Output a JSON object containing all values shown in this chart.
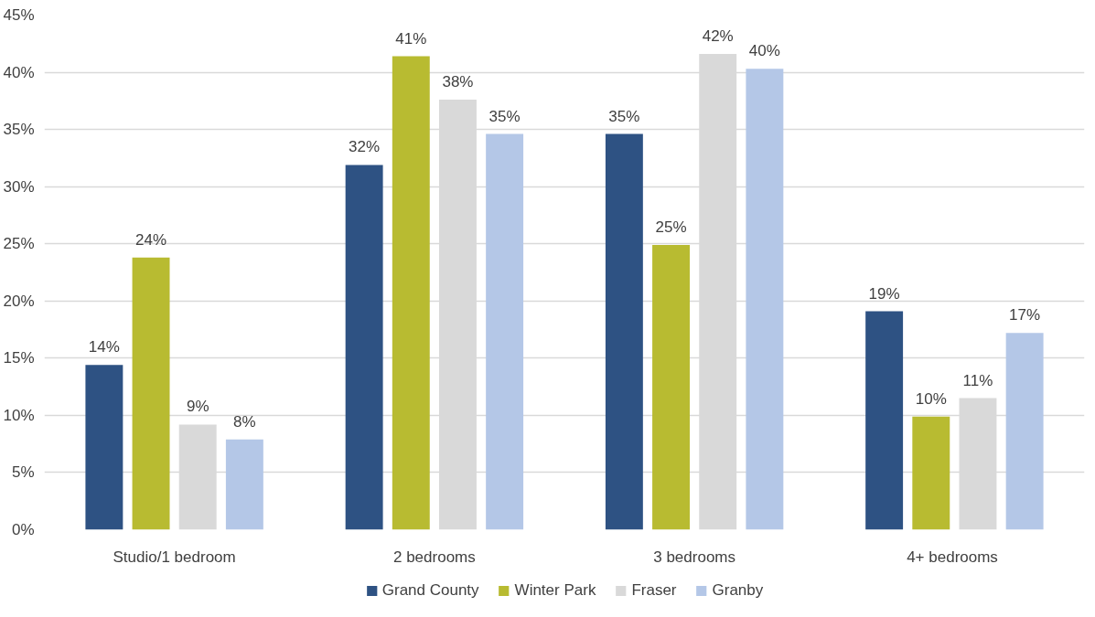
{
  "chart_data": {
    "type": "bar",
    "categories": [
      "Studio/1 bedroom",
      "2 bedrooms",
      "3 bedrooms",
      "4+  bedrooms"
    ],
    "series": [
      {
        "name": "Grand County",
        "color": "#2e5283",
        "values": [
          14.4,
          31.9,
          34.6,
          19.1
        ],
        "value_labels": [
          "14%",
          "32%",
          "35%",
          "19%"
        ]
      },
      {
        "name": "Winter Park",
        "color": "#b8bb31",
        "values": [
          23.8,
          41.4,
          24.9,
          9.9
        ],
        "value_labels": [
          "24%",
          "41%",
          "25%",
          "10%"
        ]
      },
      {
        "name": "Fraser",
        "color": "#d9d9d9",
        "values": [
          9.2,
          37.6,
          41.6,
          11.5
        ],
        "value_labels": [
          "9%",
          "38%",
          "42%",
          "11%"
        ]
      },
      {
        "name": "Granby",
        "color": "#b4c7e7",
        "values": [
          7.9,
          34.6,
          40.3,
          17.2
        ],
        "value_labels": [
          "8%",
          "35%",
          "40%",
          "17%"
        ]
      }
    ],
    "ylim": [
      0,
      45
    ],
    "yticks": [
      {
        "value": 0,
        "label": "0%"
      },
      {
        "value": 5,
        "label": "5%"
      },
      {
        "value": 10,
        "label": "10%"
      },
      {
        "value": 15,
        "label": "15%"
      },
      {
        "value": 20,
        "label": "20%"
      },
      {
        "value": 25,
        "label": "25%"
      },
      {
        "value": 30,
        "label": "30%"
      },
      {
        "value": 35,
        "label": "35%"
      },
      {
        "value": 40,
        "label": "40%"
      },
      {
        "value": 45,
        "label": "45%"
      }
    ],
    "grid": "y",
    "legend": "bottom"
  }
}
